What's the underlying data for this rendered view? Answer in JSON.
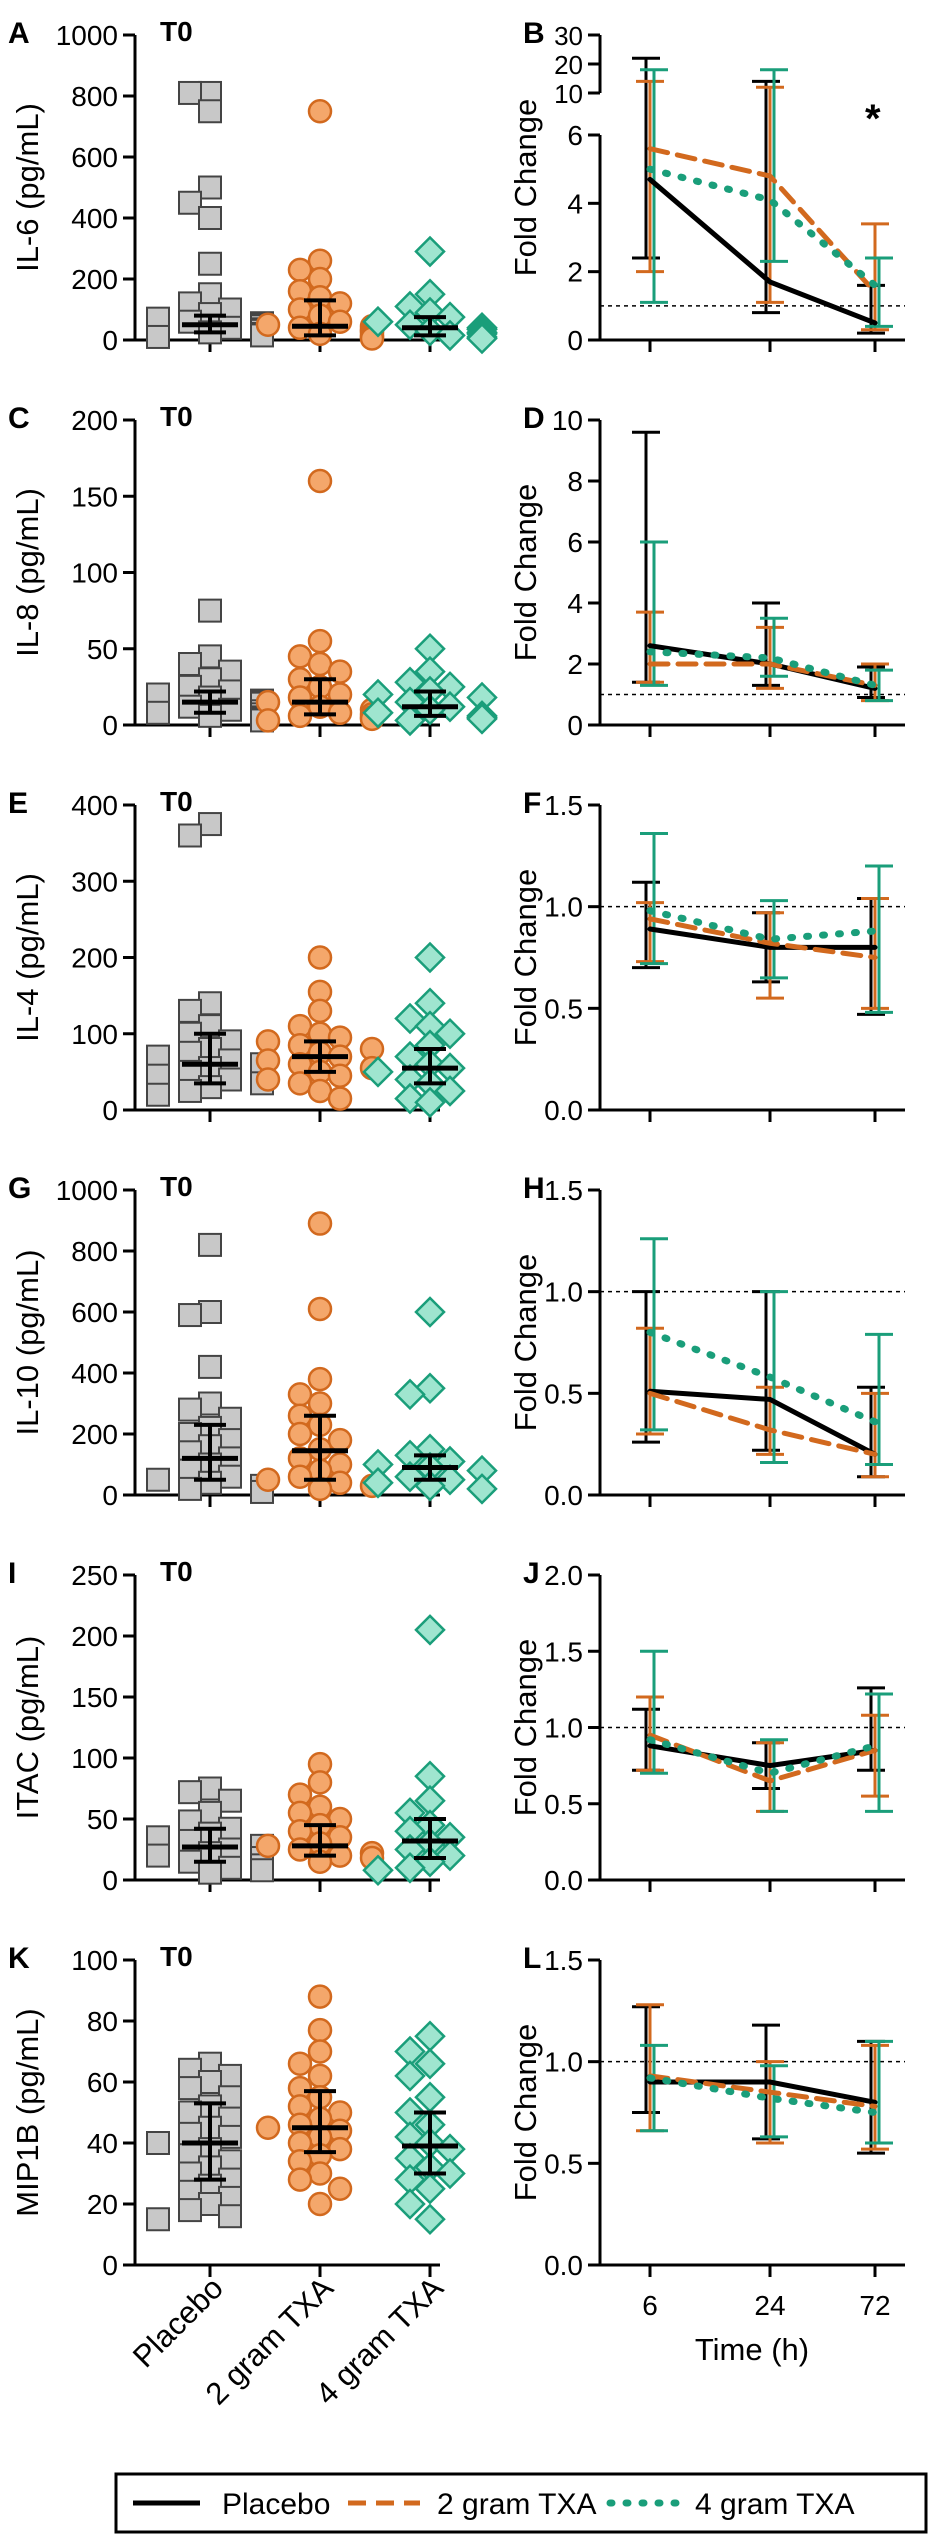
{
  "colors": {
    "placebo": "#000000",
    "tx2": "#d2691e",
    "tx4": "#1a9e7a",
    "placeboFill": "#c8c8c8",
    "tx2Fill": "#f4a76b",
    "tx4Fill": "#9fe5cf"
  },
  "groups": [
    "Placebo",
    "2 gram TXA",
    "4 gram TXA"
  ],
  "time_axis": {
    "ticks": [
      "6",
      "24",
      "72"
    ],
    "label": "Time (h)"
  },
  "fold_label": "Fold Change",
  "t0_label": "T0",
  "legend": {
    "placebo": "Placebo",
    "tx2": "2 gram TXA",
    "tx4": "4 gram TXA"
  },
  "chart_data": [
    {
      "panel": "A",
      "type": "scatter",
      "title": "T0",
      "ylabel": "IL-6 (pg/mL)",
      "ylim": [
        0,
        1000
      ],
      "yticks": [
        0,
        200,
        400,
        600,
        800,
        1000
      ],
      "groups": [
        {
          "name": "Placebo",
          "median": 50,
          "q1": 25,
          "q3": 80,
          "points": [
            810,
            810,
            750,
            500,
            450,
            400,
            250,
            150,
            120,
            100,
            85,
            70,
            60,
            55,
            50,
            45,
            40,
            35,
            30,
            25,
            20,
            15,
            10
          ]
        },
        {
          "name": "2 gram TXA",
          "median": 45,
          "q1": 15,
          "q3": 130,
          "points": [
            750,
            260,
            230,
            200,
            160,
            140,
            120,
            100,
            80,
            60,
            50,
            45,
            40,
            35,
            30,
            25,
            20,
            15,
            10,
            5
          ]
        },
        {
          "name": "4 gram TXA",
          "median": 40,
          "q1": 15,
          "q3": 75,
          "points": [
            290,
            150,
            110,
            90,
            75,
            60,
            50,
            40,
            35,
            30,
            25,
            20,
            15,
            10,
            5
          ]
        }
      ]
    },
    {
      "panel": "B",
      "type": "line",
      "ylabel": "Fold Change",
      "ylim": [
        0,
        6
      ],
      "yticks": [
        0,
        2,
        4,
        6
      ],
      "upper_ticks": [
        10,
        20,
        30
      ],
      "x": [
        "6",
        "24",
        "72"
      ],
      "annotation": "*",
      "reference": 1,
      "series": [
        {
          "name": "Placebo",
          "values": [
            4.7,
            1.7,
            0.5
          ],
          "error_low": [
            2.4,
            0.8,
            0.2
          ],
          "error_high": [
            22,
            14,
            1.6
          ]
        },
        {
          "name": "2 gram TXA",
          "values": [
            5.6,
            4.8,
            1.4
          ],
          "error_low": [
            2.0,
            1.1,
            0.3
          ],
          "error_high": [
            14,
            12,
            3.4
          ]
        },
        {
          "name": "4 gram TXA",
          "values": [
            5.0,
            4.1,
            1.6
          ],
          "error_low": [
            1.1,
            2.3,
            0.4
          ],
          "error_high": [
            18,
            18,
            2.4
          ]
        }
      ]
    },
    {
      "panel": "C",
      "type": "scatter",
      "title": "T0",
      "ylabel": "IL-8 (pg/mL)",
      "ylim": [
        0,
        200
      ],
      "yticks": [
        0,
        50,
        100,
        150,
        200
      ],
      "groups": [
        {
          "name": "Placebo",
          "median": 15,
          "q1": 8,
          "q3": 22,
          "points": [
            75,
            45,
            40,
            35,
            30,
            25,
            22,
            20,
            18,
            16,
            15,
            14,
            12,
            10,
            9,
            8,
            7,
            6,
            5,
            4,
            3
          ]
        },
        {
          "name": "2 gram TXA",
          "median": 15,
          "q1": 7,
          "q3": 30,
          "points": [
            160,
            55,
            45,
            40,
            35,
            30,
            25,
            20,
            18,
            15,
            12,
            10,
            8,
            7,
            6,
            5,
            4,
            3
          ]
        },
        {
          "name": "4 gram TXA",
          "median": 12,
          "q1": 6,
          "q3": 22,
          "points": [
            50,
            35,
            28,
            25,
            22,
            20,
            18,
            15,
            12,
            10,
            8,
            6,
            5,
            4,
            3
          ]
        }
      ]
    },
    {
      "panel": "D",
      "type": "line",
      "ylabel": "Fold Change",
      "ylim": [
        0,
        10
      ],
      "yticks": [
        0,
        2,
        4,
        6,
        8,
        10
      ],
      "x": [
        "6",
        "24",
        "72"
      ],
      "reference": 1,
      "series": [
        {
          "name": "Placebo",
          "values": [
            2.6,
            2.0,
            1.2
          ],
          "error_low": [
            1.4,
            1.3,
            0.9
          ],
          "error_high": [
            9.6,
            4.0,
            1.9
          ]
        },
        {
          "name": "2 gram TXA",
          "values": [
            2.0,
            2.0,
            1.3
          ],
          "error_low": [
            1.4,
            1.2,
            0.8
          ],
          "error_high": [
            3.7,
            3.2,
            2.0
          ]
        },
        {
          "name": "4 gram TXA",
          "values": [
            2.4,
            2.2,
            1.3
          ],
          "error_low": [
            1.3,
            1.6,
            0.8
          ],
          "error_high": [
            6.0,
            3.5,
            1.8
          ]
        }
      ]
    },
    {
      "panel": "E",
      "type": "scatter",
      "title": "T0",
      "ylabel": "IL-4 (pg/mL)",
      "ylim": [
        0,
        400
      ],
      "yticks": [
        0,
        100,
        200,
        300,
        400
      ],
      "groups": [
        {
          "name": "Placebo",
          "median": 60,
          "q1": 35,
          "q3": 100,
          "points": [
            375,
            360,
            140,
            130,
            110,
            100,
            90,
            80,
            75,
            70,
            65,
            60,
            55,
            50,
            45,
            40,
            35,
            30,
            25,
            20
          ]
        },
        {
          "name": "2 gram TXA",
          "median": 70,
          "q1": 50,
          "q3": 90,
          "points": [
            200,
            155,
            130,
            110,
            100,
            95,
            90,
            85,
            80,
            75,
            70,
            65,
            60,
            55,
            50,
            45,
            40,
            35,
            25,
            15
          ]
        },
        {
          "name": "4 gram TXA",
          "median": 55,
          "q1": 35,
          "q3": 80,
          "points": [
            200,
            140,
            120,
            110,
            100,
            85,
            70,
            60,
            55,
            50,
            40,
            35,
            25,
            15,
            10
          ]
        }
      ]
    },
    {
      "panel": "F",
      "type": "line",
      "ylabel": "Fold Change",
      "ylim": [
        0,
        1.5
      ],
      "yticks": [
        0.0,
        0.5,
        1.0,
        1.5
      ],
      "x": [
        "6",
        "24",
        "72"
      ],
      "reference": 1,
      "series": [
        {
          "name": "Placebo",
          "values": [
            0.89,
            0.8,
            0.8
          ],
          "error_low": [
            0.7,
            0.63,
            0.47
          ],
          "error_high": [
            1.12,
            0.97,
            1.04
          ]
        },
        {
          "name": "2 gram TXA",
          "values": [
            0.94,
            0.82,
            0.75
          ],
          "error_low": [
            0.73,
            0.55,
            0.5
          ],
          "error_high": [
            1.02,
            0.97,
            1.04
          ]
        },
        {
          "name": "4 gram TXA",
          "values": [
            0.98,
            0.84,
            0.88
          ],
          "error_low": [
            0.72,
            0.65,
            0.48
          ],
          "error_high": [
            1.36,
            1.03,
            1.2
          ]
        }
      ]
    },
    {
      "panel": "G",
      "type": "scatter",
      "title": "T0",
      "ylabel": "IL-10 (pg/mL)",
      "ylim": [
        0,
        1000
      ],
      "yticks": [
        0,
        200,
        400,
        600,
        800,
        1000
      ],
      "groups": [
        {
          "name": "Placebo",
          "median": 120,
          "q1": 50,
          "q3": 230,
          "points": [
            820,
            600,
            590,
            420,
            300,
            280,
            250,
            220,
            200,
            180,
            160,
            140,
            120,
            100,
            80,
            60,
            50,
            40,
            30,
            20,
            10
          ]
        },
        {
          "name": "2 gram TXA",
          "median": 145,
          "q1": 50,
          "q3": 260,
          "points": [
            890,
            610,
            380,
            330,
            300,
            260,
            230,
            200,
            180,
            150,
            120,
            100,
            80,
            60,
            50,
            40,
            30,
            20
          ]
        },
        {
          "name": "4 gram TXA",
          "median": 90,
          "q1": 50,
          "q3": 130,
          "points": [
            600,
            350,
            330,
            150,
            130,
            110,
            100,
            90,
            80,
            60,
            50,
            40,
            30,
            20
          ]
        }
      ]
    },
    {
      "panel": "H",
      "type": "line",
      "ylabel": "Fold Change",
      "ylim": [
        0,
        1.5
      ],
      "yticks": [
        0.0,
        0.5,
        1.0,
        1.5
      ],
      "x": [
        "6",
        "24",
        "72"
      ],
      "reference": 1,
      "series": [
        {
          "name": "Placebo",
          "values": [
            0.51,
            0.47,
            0.2
          ],
          "error_low": [
            0.26,
            0.22,
            0.09
          ],
          "error_high": [
            1.0,
            1.0,
            0.53
          ]
        },
        {
          "name": "2 gram TXA",
          "values": [
            0.5,
            0.32,
            0.2
          ],
          "error_low": [
            0.3,
            0.2,
            0.09
          ],
          "error_high": [
            0.82,
            0.53,
            0.5
          ]
        },
        {
          "name": "4 gram TXA",
          "values": [
            0.8,
            0.58,
            0.36
          ],
          "error_low": [
            0.32,
            0.16,
            0.15
          ],
          "error_high": [
            1.26,
            1.0,
            0.79
          ]
        }
      ]
    },
    {
      "panel": "I",
      "type": "scatter",
      "title": "T0",
      "ylabel": "ITAC (pg/mL)",
      "ylim": [
        0,
        250
      ],
      "yticks": [
        0,
        50,
        100,
        150,
        200,
        250
      ],
      "groups": [
        {
          "name": "Placebo",
          "median": 27,
          "q1": 15,
          "q3": 42,
          "points": [
            75,
            72,
            65,
            55,
            48,
            42,
            38,
            35,
            32,
            28,
            25,
            22,
            20,
            18,
            15,
            12,
            10,
            8,
            6
          ]
        },
        {
          "name": "2 gram TXA",
          "median": 28,
          "q1": 20,
          "q3": 45,
          "points": [
            95,
            80,
            70,
            60,
            55,
            50,
            45,
            40,
            35,
            30,
            28,
            25,
            22,
            20,
            18,
            15
          ]
        },
        {
          "name": "4 gram TXA",
          "median": 32,
          "q1": 18,
          "q3": 50,
          "points": [
            205,
            85,
            65,
            55,
            45,
            40,
            35,
            30,
            25,
            20,
            15,
            10,
            8
          ]
        }
      ]
    },
    {
      "panel": "J",
      "type": "line",
      "ylabel": "Fold Change",
      "ylim": [
        0,
        2.0
      ],
      "yticks": [
        0.0,
        0.5,
        1.0,
        1.5,
        2.0
      ],
      "x": [
        "6",
        "24",
        "72"
      ],
      "reference": 1,
      "series": [
        {
          "name": "Placebo",
          "values": [
            0.88,
            0.75,
            0.85
          ],
          "error_low": [
            0.72,
            0.6,
            0.72
          ],
          "error_high": [
            1.12,
            0.9,
            1.26
          ]
        },
        {
          "name": "2 gram TXA",
          "values": [
            0.95,
            0.65,
            0.85
          ],
          "error_low": [
            0.72,
            0.45,
            0.55
          ],
          "error_high": [
            1.2,
            0.9,
            1.08
          ]
        },
        {
          "name": "4 gram TXA",
          "values": [
            0.92,
            0.7,
            0.88
          ],
          "error_low": [
            0.7,
            0.45,
            0.45
          ],
          "error_high": [
            1.5,
            0.92,
            1.22
          ]
        }
      ]
    },
    {
      "panel": "K",
      "type": "scatter",
      "title": "T0",
      "ylabel": "MIP1B (pg/mL)",
      "ylim": [
        0,
        100
      ],
      "yticks": [
        0,
        20,
        40,
        60,
        80,
        100
      ],
      "groups": [
        {
          "name": "Placebo",
          "median": 40,
          "q1": 28,
          "q3": 53,
          "points": [
            66,
            64,
            62,
            60,
            58,
            55,
            52,
            50,
            48,
            45,
            43,
            42,
            40,
            38,
            36,
            34,
            32,
            30,
            28,
            26,
            24,
            22,
            20,
            18,
            16,
            15
          ]
        },
        {
          "name": "2 gram TXA",
          "median": 45,
          "q1": 37,
          "q3": 57,
          "points": [
            88,
            77,
            70,
            66,
            62,
            58,
            55,
            52,
            50,
            48,
            46,
            45,
            44,
            42,
            40,
            38,
            36,
            34,
            30,
            28,
            25,
            20
          ]
        },
        {
          "name": "4 gram TXA",
          "median": 39,
          "q1": 30,
          "q3": 50,
          "points": [
            75,
            70,
            66,
            62,
            55,
            50,
            46,
            42,
            40,
            38,
            35,
            32,
            30,
            28,
            25,
            20,
            15
          ]
        }
      ]
    },
    {
      "panel": "L",
      "type": "line",
      "ylabel": "Fold Change",
      "ylim": [
        0,
        1.5
      ],
      "yticks": [
        0.0,
        0.5,
        1.0,
        1.5
      ],
      "x": [
        "6",
        "24",
        "72"
      ],
      "reference": 1,
      "series": [
        {
          "name": "Placebo",
          "values": [
            0.9,
            0.9,
            0.8
          ],
          "error_low": [
            0.75,
            0.62,
            0.55
          ],
          "error_high": [
            1.27,
            1.18,
            1.1
          ]
        },
        {
          "name": "2 gram TXA",
          "values": [
            0.93,
            0.85,
            0.78
          ],
          "error_low": [
            0.66,
            0.6,
            0.57
          ],
          "error_high": [
            1.28,
            1.0,
            1.08
          ]
        },
        {
          "name": "4 gram TXA",
          "values": [
            0.92,
            0.82,
            0.75
          ],
          "error_low": [
            0.66,
            0.63,
            0.6
          ],
          "error_high": [
            1.08,
            0.98,
            1.1
          ]
        }
      ]
    }
  ]
}
